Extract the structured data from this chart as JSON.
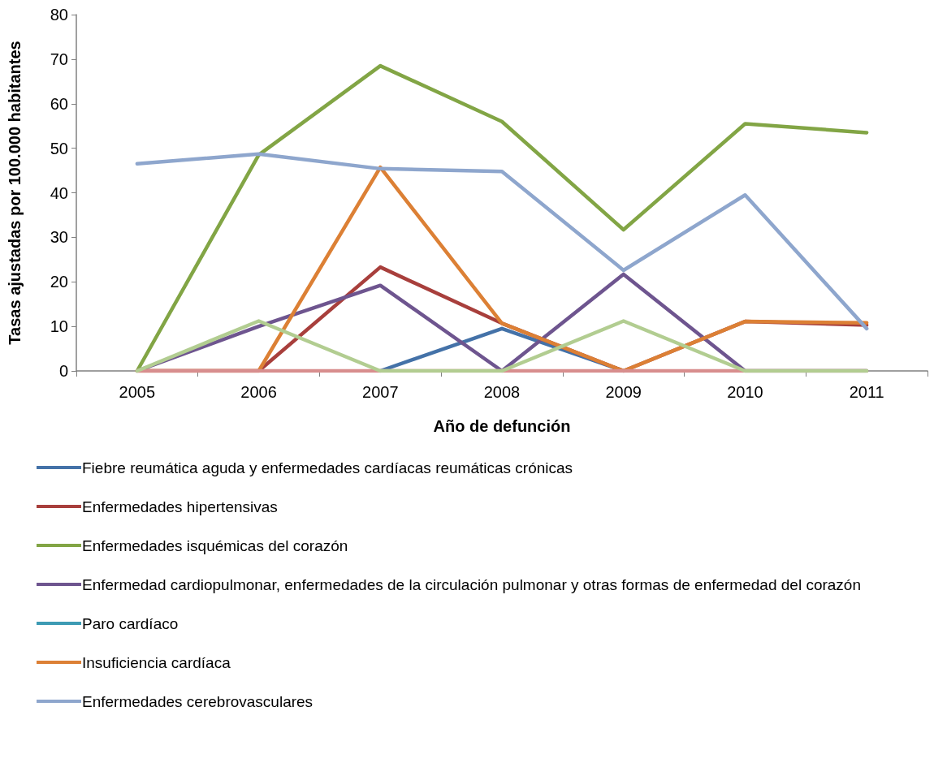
{
  "chart_data": {
    "type": "line",
    "xlabel": "Año de defunción",
    "ylabel": "Tasas ajustadas por 100.000 habitantes",
    "categories": [
      "2005",
      "2006",
      "2007",
      "2008",
      "2009",
      "2010",
      "2011"
    ],
    "series": [
      {
        "name": "Fiebre reumática aguda y enfermedades cardíacas reumáticas crónicas",
        "color": "#4472a8",
        "values": [
          null,
          null,
          0,
          9.5,
          0,
          null,
          null
        ]
      },
      {
        "name": "Enfermedades hipertensivas",
        "color": "#a83f3c",
        "values": [
          0,
          0,
          23.3,
          10.7,
          0,
          11.1,
          10.3
        ]
      },
      {
        "name": "Enfermedades isquémicas del corazón",
        "color": "#82a545",
        "values": [
          0,
          48.5,
          68.5,
          56,
          31.7,
          55.5,
          53.5
        ]
      },
      {
        "name": "Enfermedad cardiopulmonar, enfermedades de la circulación pulmonar y otras formas de enfermedad del corazón",
        "color": "#6e558f",
        "values": [
          0,
          10,
          19.2,
          0,
          21.7,
          0,
          0
        ]
      },
      {
        "name": "Paro cardíaco",
        "color": "#3d9bb4",
        "values": [
          null,
          null,
          null,
          null,
          null,
          null,
          null
        ]
      },
      {
        "name": "Insuficiencia cardíaca",
        "color": "#dc8035",
        "values": [
          0,
          0,
          45.7,
          10.7,
          0,
          11.1,
          10.8
        ]
      },
      {
        "name": "Enfermedades cerebrovasculares",
        "color": "#8ea6cd",
        "values": [
          46.5,
          48.7,
          45.4,
          44.8,
          22.6,
          39.5,
          9.5
        ]
      },
      {
        "color": "#d88e8e",
        "values": [
          0,
          0,
          0,
          0,
          0,
          0,
          0
        ]
      },
      {
        "color": "#b2cd91",
        "values": [
          0,
          11.2,
          0,
          0,
          11.2,
          0,
          0
        ]
      }
    ],
    "ylim": [
      0,
      80
    ],
    "yticks": [
      0,
      10,
      20,
      30,
      40,
      50,
      60,
      70,
      80
    ],
    "grid": false,
    "legend": "bottom",
    "marker": "none",
    "line_style": "solid"
  }
}
